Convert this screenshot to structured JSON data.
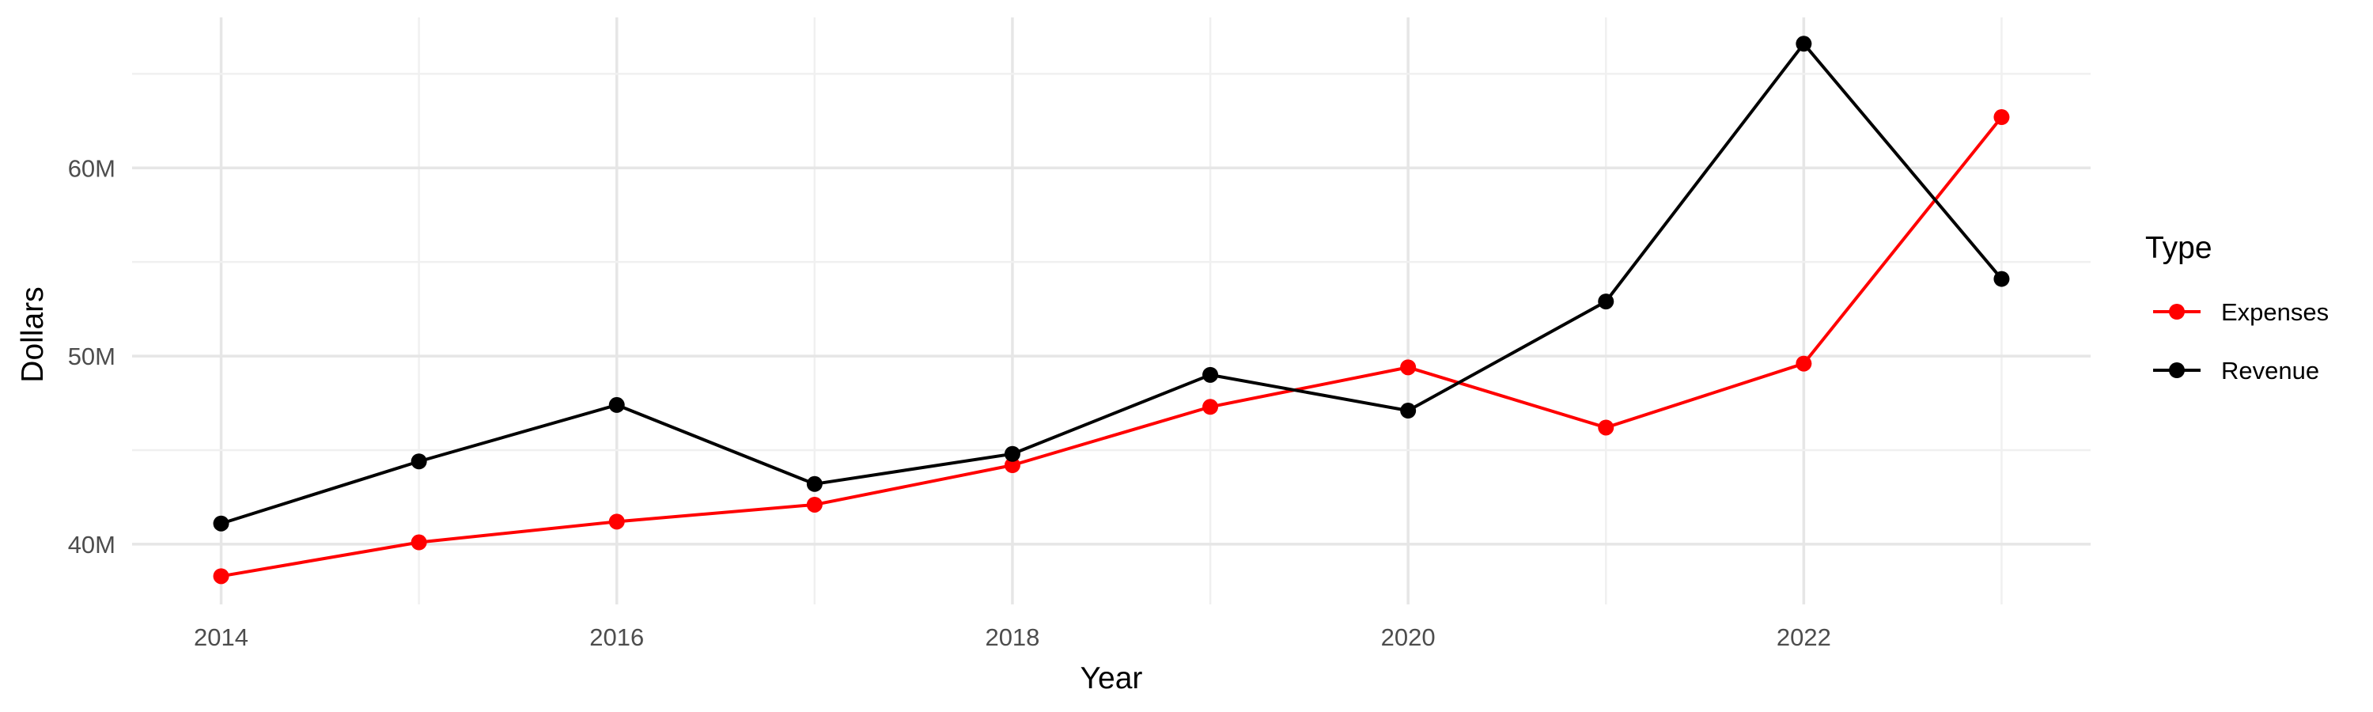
{
  "chart_data": {
    "type": "line",
    "title": "",
    "xlabel": "Year",
    "ylabel": "Dollars",
    "x": [
      2014,
      2015,
      2016,
      2017,
      2018,
      2019,
      2020,
      2021,
      2022,
      2023
    ],
    "x_ticks": [
      2014,
      2016,
      2018,
      2020,
      2022
    ],
    "x_tick_labels": [
      "2014",
      "2016",
      "2018",
      "2020",
      "2022"
    ],
    "xlim": [
      2013.55,
      2023.45
    ],
    "y_ticks": [
      40000000,
      50000000,
      60000000
    ],
    "y_tick_labels": [
      "40M",
      "50M",
      "60M"
    ],
    "ylim": [
      36800000,
      68000000
    ],
    "grid": true,
    "legend": {
      "title": "Type",
      "position": "right"
    },
    "series": [
      {
        "name": "Expenses",
        "color": "#ff0000",
        "values": [
          38300000,
          40100000,
          41200000,
          42100000,
          44200000,
          47300000,
          49400000,
          46200000,
          49600000,
          62700000
        ]
      },
      {
        "name": "Revenue",
        "color": "#000000",
        "values": [
          41100000,
          44400000,
          47400000,
          43200000,
          44800000,
          49000000,
          47100000,
          52900000,
          66600000,
          54100000
        ]
      }
    ]
  }
}
